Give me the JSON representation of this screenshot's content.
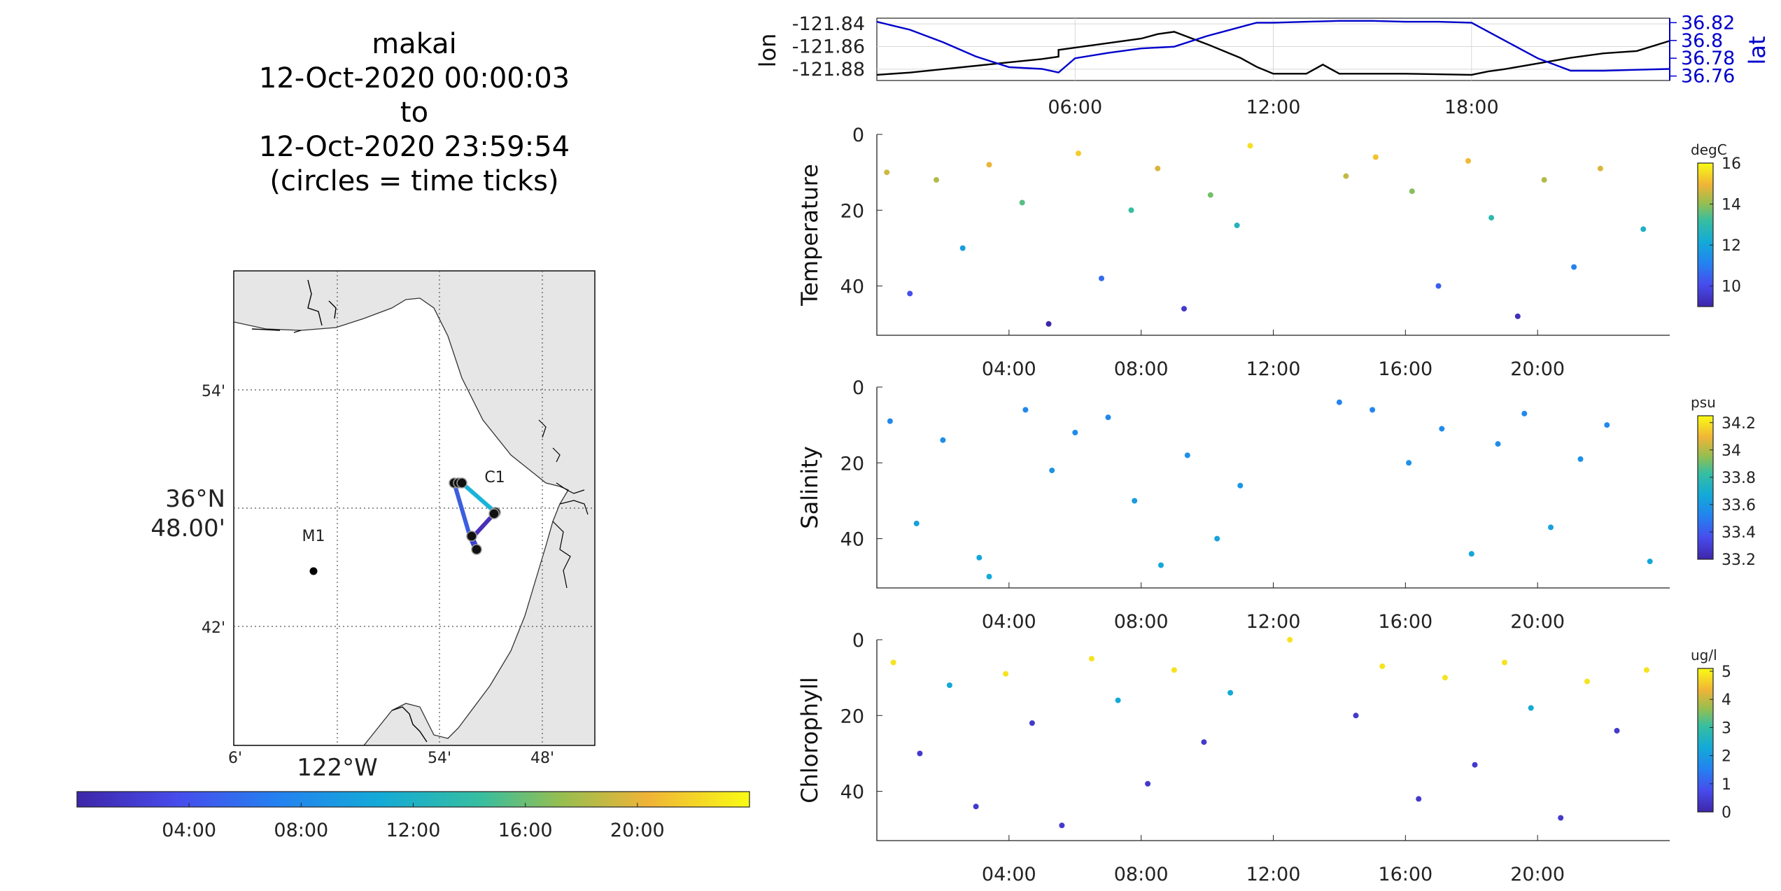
{
  "header": {
    "lines": [
      "makai",
      "12-Oct-2020 00:00:03",
      "to",
      "12-Oct-2020 23:59:54",
      "(circles = time ticks)"
    ]
  },
  "colors": {
    "lon_line": "#000000",
    "lat_line": "#0000cc",
    "grid": "#dddddd",
    "land": "#e6e6e6"
  },
  "map": {
    "lat_labels": [
      "54'",
      "36°N",
      "48.00'",
      "42'"
    ],
    "lon_labels": [
      "6'",
      "122°W",
      "54'",
      "48'"
    ],
    "station_labels": [
      "M1",
      "C1"
    ],
    "colorbar_ticks": [
      "04:00",
      "08:00",
      "12:00",
      "16:00",
      "20:00"
    ],
    "colormap": "parula"
  },
  "chart_data": [
    {
      "type": "line",
      "panel": "position",
      "x_unit": "hour of day",
      "xlim": [
        0,
        24
      ],
      "x_ticks": [
        "06:00",
        "12:00",
        "18:00"
      ],
      "y_left": {
        "label": "lon",
        "ticks": [
          "-121.84",
          "-121.86",
          "-121.88"
        ],
        "ylim": [
          -121.89,
          -121.835
        ]
      },
      "y_right": {
        "label": "lat",
        "ticks": [
          "36.82",
          "36.8",
          "36.78",
          "36.76"
        ],
        "ylim": [
          36.755,
          36.825
        ]
      },
      "series": [
        {
          "axis": "left",
          "x": [
            0,
            1,
            2,
            3,
            4,
            5,
            5.5,
            5.5,
            6,
            7,
            8,
            8.5,
            9,
            10,
            11,
            11.5,
            12,
            12.5,
            13,
            13.5,
            14,
            16,
            18,
            18.5,
            19,
            20,
            21,
            22,
            23,
            24
          ],
          "y": [
            -121.885,
            -121.883,
            -121.88,
            -121.877,
            -121.874,
            -121.871,
            -121.869,
            -121.863,
            -121.861,
            -121.857,
            -121.853,
            -121.849,
            -121.847,
            -121.858,
            -121.87,
            -121.878,
            -121.884,
            -121.884,
            -121.884,
            -121.876,
            -121.884,
            -121.884,
            -121.885,
            -121.882,
            -121.88,
            -121.875,
            -121.87,
            -121.866,
            -121.864,
            -121.855
          ]
        },
        {
          "axis": "right",
          "x": [
            0,
            1,
            2,
            3,
            4,
            5,
            5.5,
            6,
            7,
            8,
            9,
            10,
            11,
            11.5,
            12,
            13,
            14,
            15,
            16,
            17,
            18,
            19,
            20,
            21,
            22,
            23,
            24
          ],
          "y": [
            36.821,
            36.812,
            36.798,
            36.782,
            36.77,
            36.768,
            36.764,
            36.78,
            36.786,
            36.791,
            36.793,
            36.805,
            36.815,
            36.82,
            36.82,
            36.821,
            36.822,
            36.822,
            36.821,
            36.821,
            36.82,
            36.8,
            36.78,
            36.766,
            36.766,
            36.767,
            36.768
          ]
        }
      ]
    },
    {
      "type": "scatter",
      "panel": "temperature",
      "ylabel": "Temperature",
      "units": "degC",
      "ylim": [
        0,
        53
      ],
      "y_ticks": [
        "0",
        "20",
        "40"
      ],
      "x_ticks": [
        "04:00",
        "08:00",
        "12:00",
        "16:00",
        "20:00"
      ],
      "clim": [
        9,
        16
      ],
      "cbar_ticks": [
        "10",
        "12",
        "14",
        "16"
      ],
      "series": [
        {
          "x": [
            0.3,
            1.0,
            1.8,
            2.6,
            3.4,
            4.4,
            5.2,
            6.1,
            6.8,
            7.7,
            8.5,
            9.3,
            10.1,
            10.9,
            11.3,
            14.2,
            15.1,
            16.2,
            17.0,
            17.9,
            18.6,
            19.4,
            20.2,
            21.1,
            21.9,
            23.2
          ],
          "y": [
            10,
            42,
            12,
            30,
            8,
            18,
            50,
            5,
            38,
            20,
            9,
            46,
            16,
            24,
            3,
            11,
            6,
            15,
            40,
            7,
            22,
            48,
            12,
            35,
            9,
            25
          ]
        }
      ]
    },
    {
      "type": "scatter",
      "panel": "salinity",
      "ylabel": "Salinity",
      "units": "psu",
      "ylim": [
        0,
        53
      ],
      "y_ticks": [
        "0",
        "20",
        "40"
      ],
      "x_ticks": [
        "04:00",
        "08:00",
        "12:00",
        "16:00",
        "20:00"
      ],
      "clim": [
        33.2,
        34.25
      ],
      "cbar_ticks": [
        "33.2",
        "33.4",
        "33.6",
        "33.8",
        "34",
        "34.2"
      ],
      "series": [
        {
          "x": [
            0.4,
            1.2,
            2.0,
            3.1,
            3.4,
            4.5,
            5.3,
            6.0,
            7.0,
            7.8,
            8.6,
            9.4,
            10.3,
            11.0,
            14.0,
            15.0,
            16.1,
            17.1,
            18.0,
            18.8,
            19.6,
            20.4,
            21.3,
            22.1,
            23.4
          ],
          "y": [
            9,
            36,
            14,
            45,
            50,
            6,
            22,
            12,
            8,
            30,
            47,
            18,
            40,
            26,
            4,
            6,
            20,
            11,
            44,
            15,
            7,
            37,
            19,
            10,
            46
          ]
        }
      ]
    },
    {
      "type": "scatter",
      "panel": "chlorophyll",
      "ylabel": "Chlorophyll",
      "units": "ug/l",
      "ylim": [
        0,
        53
      ],
      "y_ticks": [
        "0",
        "20",
        "40"
      ],
      "x_ticks": [
        "04:00",
        "08:00",
        "12:00",
        "16:00",
        "20:00"
      ],
      "clim": [
        0,
        5.1
      ],
      "cbar_ticks": [
        "0",
        "1",
        "2",
        "3",
        "4",
        "5"
      ],
      "series": [
        {
          "x": [
            0.5,
            1.3,
            2.2,
            3.0,
            3.9,
            4.7,
            5.6,
            6.5,
            7.3,
            8.2,
            9.0,
            9.9,
            10.7,
            12.5,
            14.5,
            15.3,
            16.4,
            17.2,
            18.1,
            19.0,
            19.8,
            20.7,
            21.5,
            22.4,
            23.3
          ],
          "y": [
            6,
            30,
            12,
            44,
            9,
            22,
            49,
            5,
            16,
            38,
            8,
            27,
            14,
            0,
            20,
            7,
            42,
            10,
            33,
            6,
            18,
            47,
            11,
            24,
            8
          ]
        }
      ]
    }
  ]
}
